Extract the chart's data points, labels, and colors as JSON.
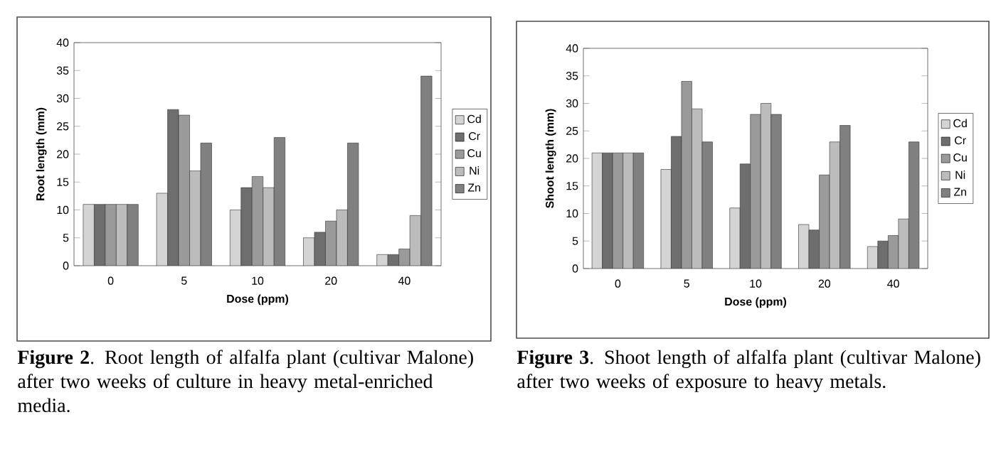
{
  "chart_data": [
    {
      "type": "bar",
      "xlabel": "Dose (ppm)",
      "ylabel": "Root length (mm)",
      "categories": [
        "0",
        "5",
        "10",
        "20",
        "40"
      ],
      "ylim": [
        0,
        40
      ],
      "yticks": [
        0,
        5,
        10,
        15,
        20,
        25,
        30,
        35,
        40
      ],
      "legend": "right",
      "series": [
        {
          "name": "Cd",
          "color": "#d4d4d4",
          "values": [
            11,
            13,
            10,
            5,
            2
          ]
        },
        {
          "name": "Cr",
          "color": "#6e6e6e",
          "values": [
            11,
            28,
            14,
            6,
            2
          ]
        },
        {
          "name": "Cu",
          "color": "#9a9a9a",
          "values": [
            11,
            27,
            16,
            8,
            3
          ]
        },
        {
          "name": "Ni",
          "color": "#bcbcbc",
          "values": [
            11,
            17,
            14,
            10,
            9
          ]
        },
        {
          "name": "Zn",
          "color": "#808080",
          "values": [
            11,
            22,
            23,
            22,
            34
          ]
        }
      ],
      "annotations": [
        "**Figure 2**. Root length of alfalfa plant (cultivar Malone) after two weeks of culture in heavy metal-enriched media."
      ]
    },
    {
      "type": "bar",
      "xlabel": "Dose (ppm)",
      "ylabel": "Shoot length (mm)",
      "categories": [
        "0",
        "5",
        "10",
        "20",
        "40"
      ],
      "ylim": [
        0,
        40
      ],
      "yticks": [
        0,
        5,
        10,
        15,
        20,
        25,
        30,
        35,
        40
      ],
      "legend": "right",
      "series": [
        {
          "name": "Cd",
          "color": "#d4d4d4",
          "values": [
            21,
            18,
            11,
            8,
            4
          ]
        },
        {
          "name": "Cr",
          "color": "#6e6e6e",
          "values": [
            21,
            24,
            19,
            7,
            5
          ]
        },
        {
          "name": "Cu",
          "color": "#9a9a9a",
          "values": [
            21,
            34,
            28,
            17,
            6
          ]
        },
        {
          "name": "Ni",
          "color": "#bcbcbc",
          "values": [
            21,
            29,
            30,
            23,
            9
          ]
        },
        {
          "name": "Zn",
          "color": "#808080",
          "values": [
            21,
            23,
            28,
            26,
            23
          ]
        }
      ],
      "annotations": [
        "**Figure 3**. Shoot length of alfalfa plant (cultivar Malone) after two weeks of exposure to heavy metals."
      ]
    }
  ]
}
